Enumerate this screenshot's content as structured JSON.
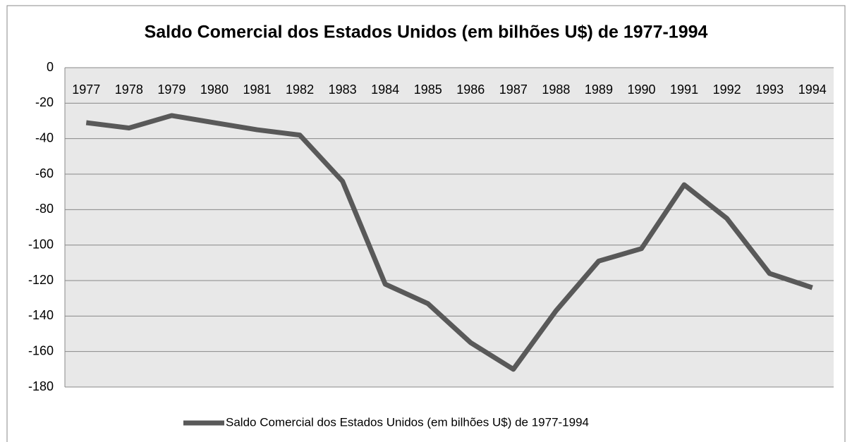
{
  "chart_data": {
    "type": "line",
    "title": "Saldo Comercial dos Estados Unidos (em bilhões U$) de 1977-1994",
    "categories": [
      "1977",
      "1978",
      "1979",
      "1980",
      "1981",
      "1982",
      "1983",
      "1984",
      "1985",
      "1986",
      "1987",
      "1988",
      "1989",
      "1990",
      "1991",
      "1992",
      "1993",
      "1994"
    ],
    "series": [
      {
        "name": "Saldo Comercial dos Estados Unidos (em bilhões U$) de 1977-1994",
        "color": "#595959",
        "values": [
          -31,
          -34,
          -27,
          -31,
          -35,
          -38,
          -64,
          -122,
          -133,
          -155,
          -170,
          -137,
          -109,
          -102,
          -66,
          -85,
          -116,
          -124
        ]
      }
    ],
    "ylim": [
      -180,
      0
    ],
    "yticks": [
      0,
      -20,
      -40,
      -60,
      -80,
      -100,
      -120,
      -140,
      -160,
      -180
    ],
    "grid": true,
    "legend": "bottom"
  }
}
